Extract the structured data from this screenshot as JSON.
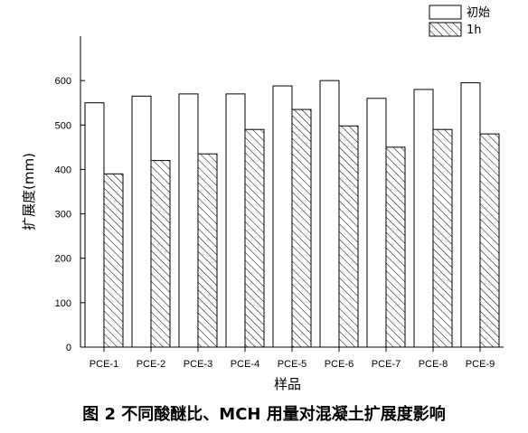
{
  "caption": "图 2 不同酸醚比、MCH 用量对混凝土扩展度影响",
  "chart_data": {
    "type": "bar",
    "xlabel": "样品",
    "ylabel": "扩展度(mm)",
    "ylim": [
      0,
      700
    ],
    "yticks": [
      0,
      100,
      200,
      300,
      400,
      500,
      600
    ],
    "categories": [
      "PCE-1",
      "PCE-2",
      "PCE-3",
      "PCE-4",
      "PCE-5",
      "PCE-6",
      "PCE-7",
      "PCE-8",
      "PCE-9"
    ],
    "series": [
      {
        "name": "初始",
        "fill": "#ffffff",
        "pattern": "none",
        "values": [
          550,
          565,
          570,
          570,
          588,
          600,
          560,
          580,
          595
        ]
      },
      {
        "name": "1h",
        "fill": "#ffffff",
        "pattern": "diagonal-hatch",
        "values": [
          390,
          420,
          435,
          490,
          535,
          498,
          450,
          490,
          480
        ]
      }
    ],
    "legend_position": "top-right",
    "grid": false
  }
}
